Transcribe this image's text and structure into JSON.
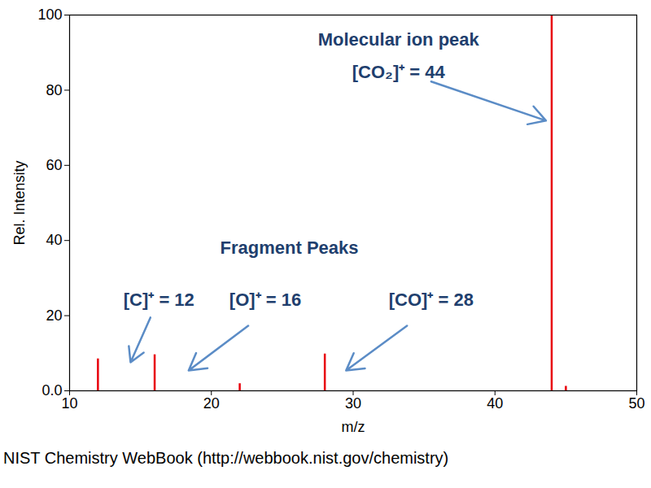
{
  "chart_data": {
    "type": "stem",
    "caption": "NIST Chemistry WebBook (http://webbook.nist.gov/chemistry)",
    "x_label": "m/z",
    "y_label": "Rel. Intensity",
    "x": [
      12,
      16,
      22,
      28,
      44,
      45
    ],
    "values": [
      8.5,
      9.6,
      1.9,
      9.8,
      100,
      1.2
    ],
    "color": "#e8000b",
    "xlim": [
      10,
      50
    ],
    "xticks": [
      10,
      20,
      30,
      40,
      50
    ],
    "ylim": [
      0,
      100
    ],
    "yticks": [
      {
        "value": 0,
        "label": "0.0"
      },
      20,
      40,
      60,
      80,
      100
    ],
    "grid": false,
    "annotations": [
      {
        "text": [
          "Molecular ion peak",
          "[CO₂]⁺ = 44"
        ],
        "x": 44
      },
      {
        "text": [
          "Fragment Peaks"
        ]
      },
      {
        "text": [
          "[C]⁺ = 12"
        ],
        "x": 12
      },
      {
        "text": [
          "[O]⁺ = 16"
        ],
        "x": 16
      },
      {
        "text": [
          "[CO]⁺ = 28"
        ],
        "x": 28
      }
    ]
  }
}
